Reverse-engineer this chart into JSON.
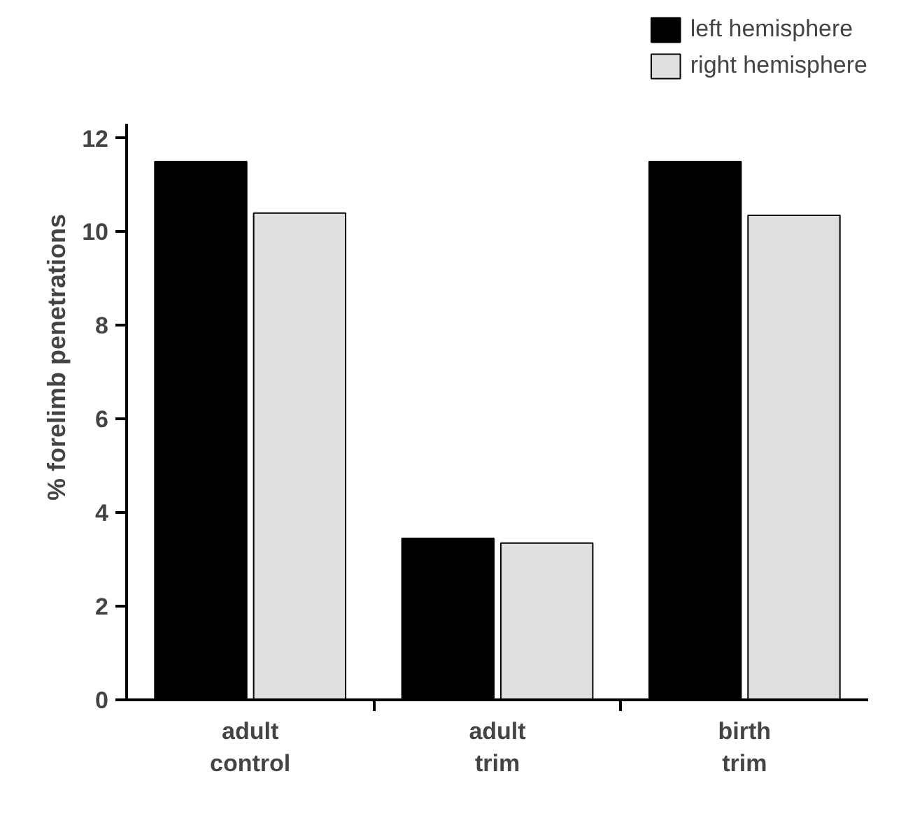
{
  "chart_data": {
    "type": "bar",
    "categories": [
      "adult control",
      "adult trim",
      "birth trim"
    ],
    "ylabel": "% forelimb penetrations",
    "series": [
      {
        "name": "left hemisphere",
        "color": "#000000",
        "values": [
          11.5,
          3.45,
          11.5
        ]
      },
      {
        "name": "right hemisphere",
        "color": "#e0e0e0",
        "values": [
          10.4,
          3.35,
          10.35
        ]
      }
    ],
    "ylim": [
      0,
      12.3
    ],
    "yticks": [
      0,
      2,
      4,
      6,
      8,
      10,
      12
    ],
    "grid": false,
    "legend": "top right"
  }
}
